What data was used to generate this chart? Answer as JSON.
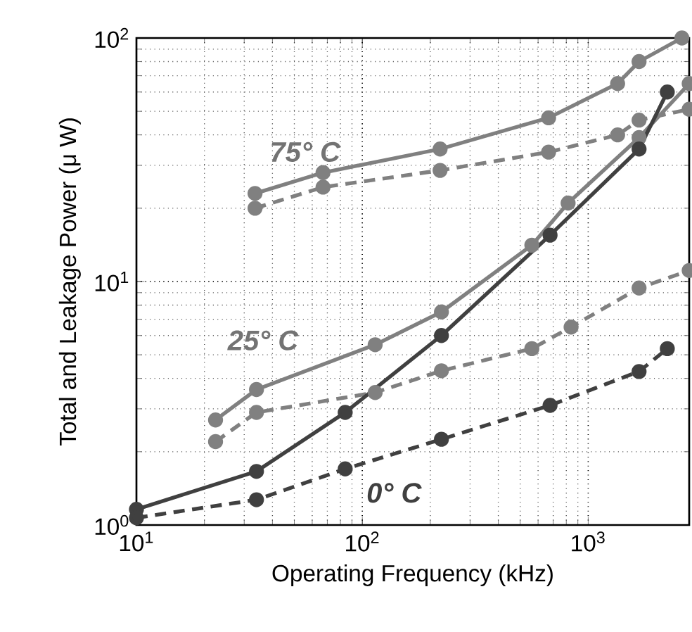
{
  "chart_data": {
    "type": "line",
    "xlabel": "Operating Frequency (kHz)",
    "ylabel": "Total and Leakage Power (μ W)",
    "log": "xy",
    "grid": true,
    "marker": "circle",
    "xlim": [
      10,
      2800
    ],
    "ylim": [
      1,
      100
    ],
    "xticks": [
      {
        "value": 10,
        "label": "10$^{1}$"
      },
      {
        "value": 100,
        "label": "10$^{2}$"
      },
      {
        "value": 1000,
        "label": "10$^{3}$"
      }
    ],
    "yticks": [
      {
        "value": 1,
        "label": "10$^{0}$"
      },
      {
        "value": 10,
        "label": "10$^{1}$"
      },
      {
        "value": 100,
        "label": "10$^{2}$"
      }
    ],
    "annotations": [
      "75° C",
      "25° C",
      "0° C"
    ],
    "series": [
      {
        "color": "#808080",
        "line_style": "solid",
        "x": [
          33.5,
          67,
          221,
          668,
          1350,
          1680,
          2600
        ],
        "values": [
          23,
          28,
          35,
          47,
          65,
          80,
          100
        ]
      },
      {
        "color": "#808080",
        "line_style": "dashed",
        "x": [
          33.5,
          67,
          221,
          668,
          1350,
          1680,
          2800
        ],
        "values": [
          20,
          24.4,
          28.6,
          34,
          40,
          46,
          51
        ]
      },
      {
        "color": "#808080",
        "line_style": "solid",
        "x": [
          22.4,
          34,
          114,
          224,
          563,
          815,
          1680,
          2800
        ],
        "values": [
          2.7,
          3.6,
          5.5,
          7.5,
          14.1,
          21,
          39,
          65
        ]
      },
      {
        "color": "#808080",
        "line_style": "dashed",
        "x": [
          22.4,
          34,
          114,
          224,
          563,
          840,
          1680,
          2800
        ],
        "values": [
          2.2,
          2.9,
          3.5,
          4.3,
          5.3,
          6.5,
          9.4,
          11.1
        ]
      },
      {
        "color": "#404040",
        "line_style": "solid",
        "x": [
          10,
          34,
          84,
          224,
          678,
          1680,
          2240
        ],
        "values": [
          1.16,
          1.66,
          2.9,
          6.0,
          15.5,
          35,
          60
        ]
      },
      {
        "color": "#404040",
        "line_style": "dashed",
        "x": [
          10,
          34,
          84,
          224,
          678,
          1680,
          2240
        ],
        "values": [
          1.07,
          1.27,
          1.7,
          2.25,
          3.1,
          4.27,
          5.3
        ]
      }
    ]
  }
}
